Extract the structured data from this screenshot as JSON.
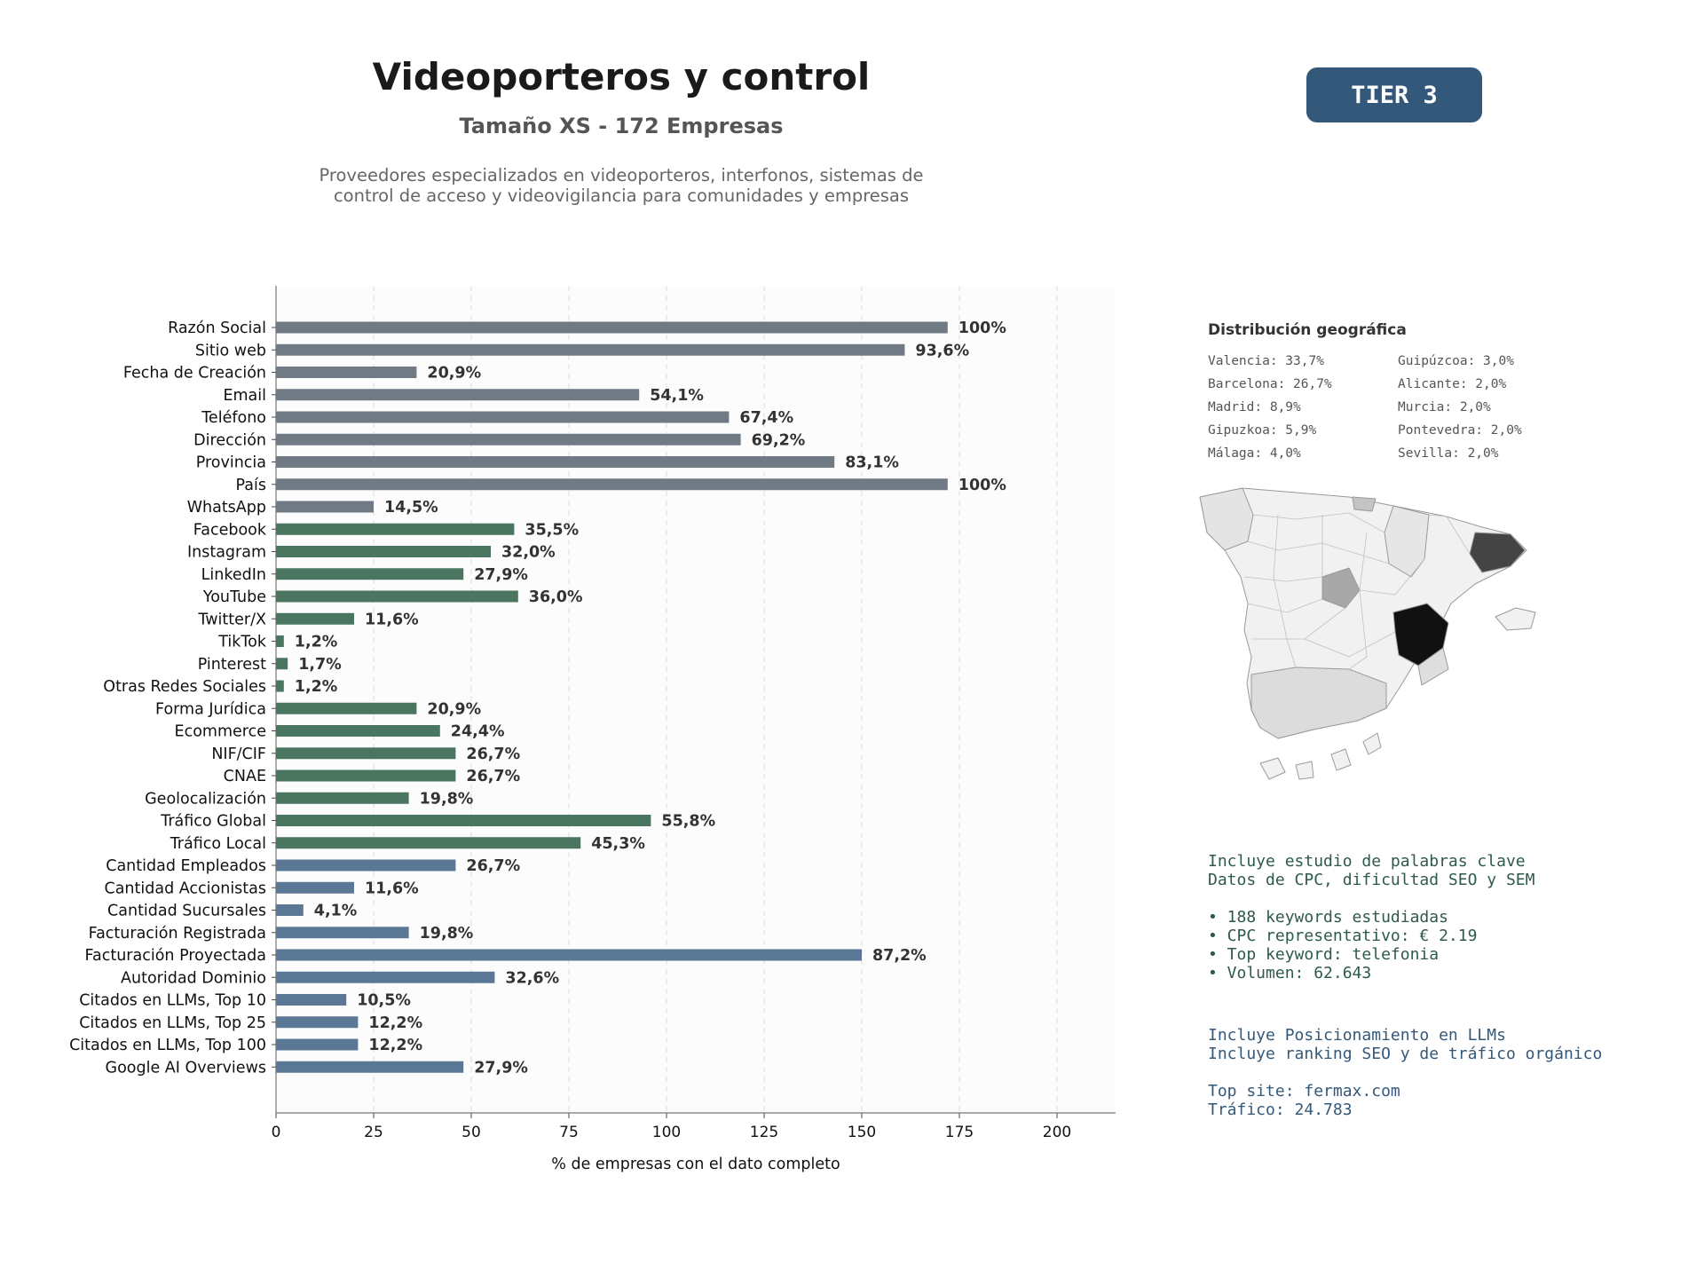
{
  "header": {
    "title": "Videoporteros y control",
    "subtitle": "Tamaño XS - 172 Empresas",
    "description": "Proveedores especializados en videoporteros, interfonos, sistemas de\ncontrol de acceso y videovigilancia para comunidades y empresas",
    "tier_label": "TIER 3",
    "tier_color": "#34587a"
  },
  "colors": {
    "group_basic": "#6f7a84",
    "group_digital": "#4a7561",
    "group_business": "#5a7896",
    "keywords_text": "#2e5a49",
    "llm_text": "#34587a"
  },
  "chart_data": {
    "type": "bar",
    "orientation": "horizontal",
    "xlabel": "% de empresas con el dato completo",
    "xlim": [
      0,
      215
    ],
    "xticks": [
      0,
      25,
      50,
      75,
      100,
      125,
      150,
      175,
      200
    ],
    "grid": "vertical dashed",
    "categories": [
      "Razón Social",
      "Sitio web",
      "Fecha de Creación",
      "Email",
      "Teléfono",
      "Dirección",
      "Provincia",
      "País",
      "WhatsApp",
      "Facebook",
      "Instagram",
      "LinkedIn",
      "YouTube",
      "Twitter/X",
      "TikTok",
      "Pinterest",
      "Otras Redes Sociales",
      "Forma Jurídica",
      "Ecommerce",
      "NIF/CIF",
      "CNAE",
      "Geolocalización",
      "Tráfico Global",
      "Tráfico Local",
      "Cantidad Empleados",
      "Cantidad Accionistas",
      "Cantidad Sucursales",
      "Facturación Registrada",
      "Facturación Proyectada",
      "Autoridad Dominio",
      "Citados en LLMs, Top 10",
      "Citados en LLMs, Top 25",
      "Citados en LLMs, Top 100",
      "Google AI Overviews"
    ],
    "values": [
      172,
      161,
      36,
      93,
      116,
      119,
      143,
      172,
      25,
      61,
      55,
      48,
      62,
      20,
      2,
      3,
      2,
      36,
      42,
      46,
      46,
      34,
      96,
      78,
      46,
      20,
      7,
      34,
      150,
      56,
      18,
      21,
      21,
      48
    ],
    "labels": [
      "100%",
      "93,6%",
      "20,9%",
      "54,1%",
      "67,4%",
      "69,2%",
      "83,1%",
      "100%",
      "14,5%",
      "35,5%",
      "32,0%",
      "27,9%",
      "36,0%",
      "11,6%",
      "1,2%",
      "1,7%",
      "1,2%",
      "20,9%",
      "24,4%",
      "26,7%",
      "26,7%",
      "19,8%",
      "55,8%",
      "45,3%",
      "26,7%",
      "11,6%",
      "4,1%",
      "19,8%",
      "87,2%",
      "32,6%",
      "10,5%",
      "12,2%",
      "12,2%",
      "27,9%"
    ],
    "groups": [
      "basic",
      "basic",
      "basic",
      "basic",
      "basic",
      "basic",
      "basic",
      "basic",
      "basic",
      "digital",
      "digital",
      "digital",
      "digital",
      "digital",
      "digital",
      "digital",
      "digital",
      "digital",
      "digital",
      "digital",
      "digital",
      "digital",
      "digital",
      "digital",
      "business",
      "business",
      "business",
      "business",
      "business",
      "business",
      "business",
      "business",
      "business",
      "business"
    ]
  },
  "geo": {
    "title": "Distribución geográfica",
    "items": [
      "Valencia: 33,7%",
      "Barcelona: 26,7%",
      "Madrid: 8,9%",
      "Gipuzkoa: 5,9%",
      "Málaga: 4,0%",
      "Guipúzcoa: 3,0%",
      "Alicante: 2,0%",
      "Murcia: 2,0%",
      "Pontevedra: 2,0%",
      "Sevilla: 2,0%"
    ]
  },
  "keywords": {
    "lines": [
      "Incluye estudio de palabras clave",
      "Datos de CPC, dificultad SEO y SEM",
      "",
      "• 188 keywords estudiadas",
      "• CPC representativo: € 2.19",
      "• Top keyword: telefonia",
      "• Volumen: 62.643"
    ]
  },
  "llm": {
    "lines": [
      "Incluye Posicionamiento en LLMs",
      "Incluye ranking SEO y de tráfico orgánico",
      "",
      "Top site: fermax.com",
      "Tráfico: 24.783"
    ]
  }
}
